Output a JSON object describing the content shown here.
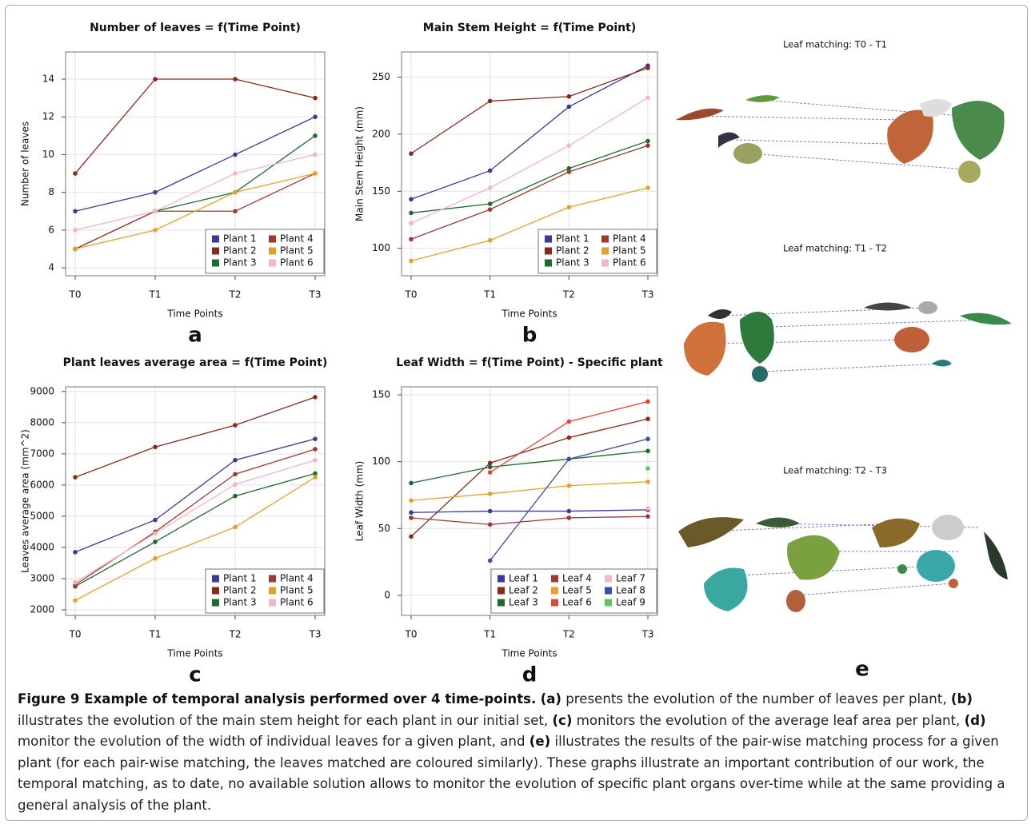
{
  "chart_data": [
    {
      "type": "line",
      "title": "Number of leaves = f(Time Point)",
      "xlabel": "Time Points",
      "ylabel": "Number of leaves",
      "categories": [
        "T0",
        "T1",
        "T2",
        "T3"
      ],
      "ylim": [
        3.58,
        15.44
      ],
      "yticks": [
        4,
        6,
        8,
        10,
        12,
        14
      ],
      "grid": true,
      "legend": "lower right",
      "legend_columns": 2,
      "series": [
        {
          "name": "Plant 1",
          "color": "#3a3a9c",
          "values": [
            7,
            8,
            10,
            12
          ]
        },
        {
          "name": "Plant 2",
          "color": "#8b2a1a",
          "values": [
            9,
            14,
            14,
            13
          ]
        },
        {
          "name": "Plant 3",
          "color": "#1e6b2a",
          "values": [
            5,
            7,
            8,
            11
          ]
        },
        {
          "name": "Plant 4",
          "color": "#a03a30",
          "values": [
            5,
            7,
            7,
            9
          ]
        },
        {
          "name": "Plant 5",
          "color": "#e6a12a",
          "values": [
            5,
            6,
            8,
            9
          ]
        },
        {
          "name": "Plant 6",
          "color": "#f2b6c6",
          "values": [
            6,
            7,
            9,
            10
          ]
        }
      ]
    },
    {
      "type": "line",
      "title": "Main Stem Height = f(Time Point)",
      "xlabel": "Time Points",
      "ylabel": "Main Stem Height (mm)",
      "categories": [
        "T0",
        "T1",
        "T2",
        "T3"
      ],
      "ylim": [
        76,
        272
      ],
      "yticks": [
        100,
        150,
        200,
        250
      ],
      "grid": true,
      "legend": "lower right",
      "legend_columns": 2,
      "series": [
        {
          "name": "Plant 1",
          "color": "#3a3a9c",
          "values": [
            143,
            168,
            224,
            260
          ]
        },
        {
          "name": "Plant 2",
          "color": "#8b2a1a",
          "values": [
            183,
            229,
            233,
            258
          ]
        },
        {
          "name": "Plant 3",
          "color": "#1e6b2a",
          "values": [
            131,
            139,
            170,
            194
          ]
        },
        {
          "name": "Plant 4",
          "color": "#a03a30",
          "values": [
            108,
            134,
            167,
            190
          ]
        },
        {
          "name": "Plant 5",
          "color": "#e6a12a",
          "values": [
            89,
            107,
            136,
            153
          ]
        },
        {
          "name": "Plant 6",
          "color": "#f2b6c6",
          "values": [
            122,
            153,
            190,
            232
          ]
        }
      ]
    },
    {
      "type": "line",
      "title": "Plant leaves average area = f(Time Point)",
      "xlabel": "Time Points",
      "ylabel": "Leaves average area (mm^2)",
      "categories": [
        "T0",
        "T1",
        "T2",
        "T3"
      ],
      "ylim": [
        1820,
        9150
      ],
      "yticks": [
        2000,
        3000,
        4000,
        5000,
        6000,
        7000,
        8000,
        9000
      ],
      "grid": true,
      "legend": "lower right",
      "legend_columns": 2,
      "series": [
        {
          "name": "Plant 1",
          "color": "#3a3a9c",
          "values": [
            3850,
            4880,
            6800,
            7480
          ]
        },
        {
          "name": "Plant 2",
          "color": "#8b2a1a",
          "values": [
            6250,
            7220,
            7920,
            8820
          ]
        },
        {
          "name": "Plant 3",
          "color": "#1e6b2a",
          "values": [
            2750,
            4180,
            5650,
            6370
          ]
        },
        {
          "name": "Plant 4",
          "color": "#a03a30",
          "values": [
            2800,
            4500,
            6350,
            7150
          ]
        },
        {
          "name": "Plant 5",
          "color": "#e6a12a",
          "values": [
            2300,
            3650,
            4650,
            6250
          ]
        },
        {
          "name": "Plant 6",
          "color": "#f2b6c6",
          "values": [
            2880,
            4450,
            6020,
            6800
          ]
        }
      ]
    },
    {
      "type": "line",
      "title": "Leaf Width = f(Time Point) - Specific plant",
      "xlabel": "Time Points",
      "ylabel": "Leaf Width (mm)",
      "categories": [
        "T0",
        "T1",
        "T2",
        "T3"
      ],
      "ylim": [
        -15,
        156
      ],
      "yticks": [
        0,
        50,
        100,
        150
      ],
      "grid": true,
      "legend": "lower right",
      "legend_columns": 3,
      "series": [
        {
          "name": "Leaf 1",
          "color": "#3a3a9c",
          "values": [
            62,
            63,
            63,
            64
          ]
        },
        {
          "name": "Leaf 2",
          "color": "#8b2a1a",
          "values": [
            44,
            99,
            118,
            132
          ]
        },
        {
          "name": "Leaf 3",
          "color": "#1e6b2a",
          "values": [
            84,
            96,
            102,
            108
          ]
        },
        {
          "name": "Leaf 4",
          "color": "#a03a30",
          "values": [
            58,
            53,
            58,
            59
          ]
        },
        {
          "name": "Leaf 5",
          "color": "#e6a12a",
          "values": [
            71,
            76,
            82,
            85
          ]
        },
        {
          "name": "Leaf 6",
          "color": "#e0453a",
          "values": [
            null,
            92,
            130,
            145
          ]
        },
        {
          "name": "Leaf 7",
          "color": "#f2b6c6",
          "values": [
            null,
            null,
            null,
            65
          ]
        },
        {
          "name": "Leaf 8",
          "color": "#3a50a8",
          "values": [
            null,
            26,
            102,
            117
          ]
        },
        {
          "name": "Leaf 9",
          "color": "#5cc85c",
          "values": [
            null,
            null,
            null,
            95
          ]
        }
      ]
    }
  ],
  "panels": [
    "a",
    "b",
    "c",
    "d",
    "e"
  ],
  "panel_e": {
    "titles": [
      "Leaf matching: T0 - T1",
      "Leaf matching: T1 - T2",
      "Leaf matching: T2 - T3"
    ]
  },
  "caption": {
    "title": "Figure 9 Example of temporal analysis performed over 4 time-points.",
    "labels": [
      "(a)",
      "(b)",
      "(c)",
      "(d)",
      "(e)"
    ],
    "texts": [
      " presents the evolution of the number of leaves per plant, ",
      " illustrates the evolution of the main stem height for each plant in our initial set, ",
      " monitors the evolution of the average leaf area per plant, ",
      " monitor the evolution of the width of individual leaves for a given plant, and ",
      " illustrates the results of the pair-wise matching process for a given plant (for each pair-wise matching, the leaves matched are coloured similarly). These graphs illustrate an important contribution of our work, the temporal matching, as to date, no available solution allows to monitor the evolution of specific plant organs over-time while at the same providing a general analysis of the plant."
    ]
  }
}
